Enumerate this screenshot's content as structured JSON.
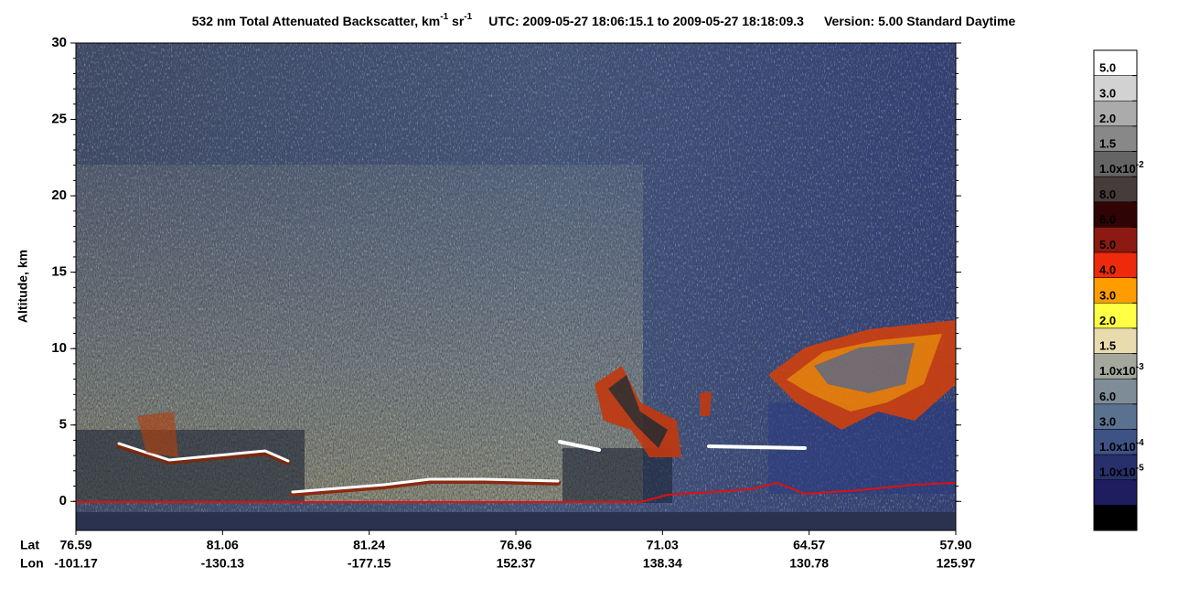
{
  "chart_data": {
    "type": "curtain",
    "title": {
      "main": "532 nm Total Attenuated Backscatter, km",
      "exp1": "-1",
      "unit2": " sr",
      "exp2": "-1",
      "utc": "UTC:  2009-05-27 18:06:15.1  to  2009-05-27 18:18:09.3",
      "version": "Version: 5.00  Standard  Daytime"
    },
    "ylabel": "Altitude, km",
    "ylim": [
      -1.9,
      30
    ],
    "yticks": [
      0,
      5,
      10,
      15,
      20,
      25,
      30
    ],
    "x_row_names": [
      "Lat",
      "Lon"
    ],
    "lat": [
      "76.59",
      "81.06",
      "81.24",
      "76.96",
      "71.03",
      "64.57",
      "57.90"
    ],
    "lon": [
      "-101.17",
      "-130.13",
      "-177.15",
      "152.37",
      "138.34",
      "130.78",
      "125.97"
    ],
    "colorbar": {
      "colors": [
        "#ffffff",
        "#d2d2d2",
        "#ababab",
        "#888888",
        "#646464",
        "#463c3a",
        "#300404",
        "#8c1a12",
        "#ee2a0c",
        "#ff9c00",
        "#ffff44",
        "#e8dcae",
        "#a4a89c",
        "#7e8c98",
        "#5b7190",
        "#3e5286",
        "#27306c",
        "#1d1d60",
        "#000000"
      ],
      "labels": [
        {
          "base": "5.0"
        },
        {
          "base": "3.0"
        },
        {
          "base": "2.0"
        },
        {
          "base": "1.5"
        },
        {
          "base": "1.0x10",
          "sup": "-2"
        },
        {
          "base": "8.0"
        },
        {
          "base": "6.0"
        },
        {
          "base": "5.0"
        },
        {
          "base": "4.0"
        },
        {
          "base": "3.0"
        },
        {
          "base": "2.0"
        },
        {
          "base": "1.5"
        },
        {
          "base": "1.0x10",
          "sup": "-3"
        },
        {
          "base": "6.0"
        },
        {
          "base": "3.0"
        },
        {
          "base": "1.0x10",
          "sup": "-4"
        },
        {
          "base": "1.0x10",
          "sup": "-5"
        }
      ]
    }
  }
}
